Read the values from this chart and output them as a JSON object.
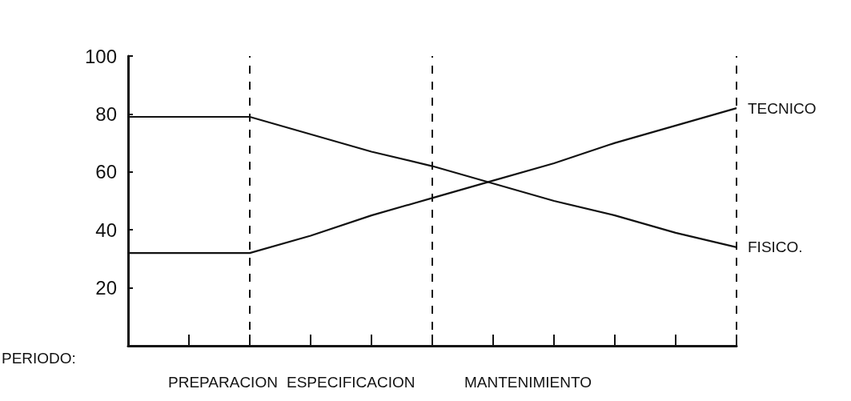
{
  "chart_data": {
    "type": "line",
    "xlabel": "PERIODO:",
    "categories": [
      null,
      null,
      null,
      null,
      null,
      null,
      null,
      null,
      null,
      null,
      null
    ],
    "series": [
      {
        "name": "TECNICO",
        "color": "#111111",
        "values": [
          32,
          32,
          32,
          38,
          45,
          51,
          57,
          63,
          70,
          76,
          82
        ]
      },
      {
        "name": "FISICO.",
        "color": "#111111",
        "values": [
          79,
          79,
          79,
          73,
          67,
          62,
          56,
          50,
          45,
          39,
          34
        ]
      }
    ],
    "ylim": [
      0,
      100
    ],
    "yticks": [
      20,
      40,
      60,
      80,
      100
    ],
    "grid": false,
    "legend": false,
    "marker": "none",
    "line_style": "solid",
    "annotations": [
      "PREPARACION",
      "ESPECIFICACION",
      "MANTENIMIENTO"
    ]
  }
}
